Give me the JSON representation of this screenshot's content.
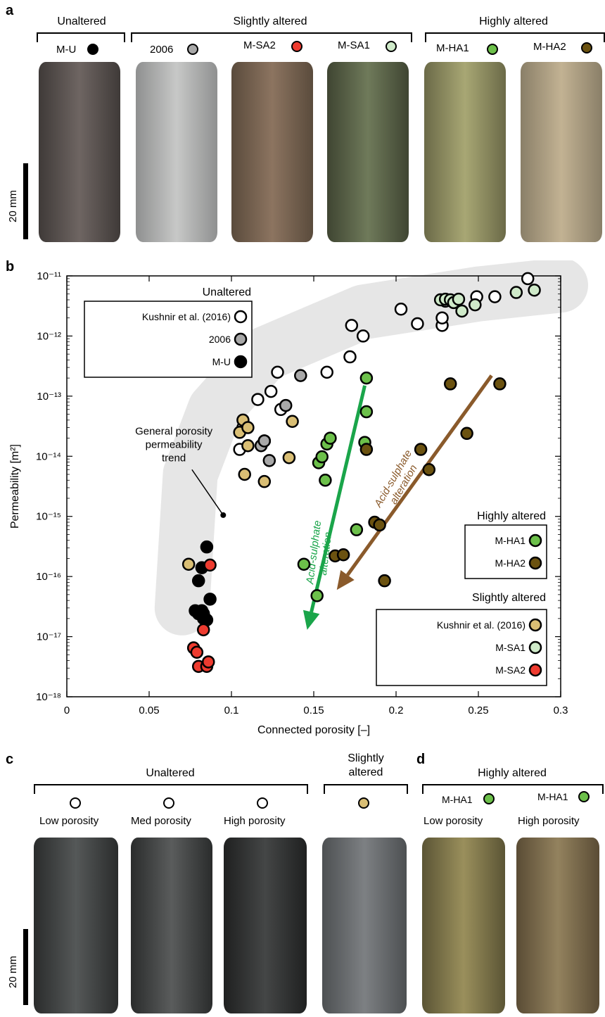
{
  "panel_a": {
    "letter": "a",
    "groups": [
      {
        "label": "Unaltered"
      },
      {
        "label": "Slightly altered"
      },
      {
        "label": "Highly altered"
      }
    ],
    "samples": [
      {
        "label": "M-U",
        "color": "#000000"
      },
      {
        "label": "2006",
        "color": "#a8a8a8"
      },
      {
        "label": "M-SA2",
        "color": "#ee3b2f"
      },
      {
        "label": "M-SA1",
        "color": "#cfeac9"
      },
      {
        "label": "M-HA1",
        "color": "#6cc04a"
      },
      {
        "label": "M-HA2",
        "color": "#6b5210"
      }
    ],
    "scale_label": "20 mm"
  },
  "panel_b": {
    "letter": "b",
    "legend_unaltered": {
      "title": "Unaltered",
      "items": [
        {
          "label": "Kushnir et al. (2016)",
          "color": "#ffffff"
        },
        {
          "label": "2006",
          "color": "#a8a8a8"
        },
        {
          "label": "M-U",
          "color": "#000000"
        }
      ]
    },
    "legend_highly": {
      "title": "Highly altered",
      "items": [
        {
          "label": "M-HA1",
          "color": "#6cc04a"
        },
        {
          "label": "M-HA2",
          "color": "#6b5210"
        }
      ]
    },
    "legend_slightly": {
      "title": "Slightly altered",
      "items": [
        {
          "label": "Kushnir et al. (2016)",
          "color": "#d9be74"
        },
        {
          "label": "M-SA1",
          "color": "#cfeac9"
        },
        {
          "label": "M-SA2",
          "color": "#ee3b2f"
        }
      ]
    },
    "trend_annotation": [
      "General porosity",
      "permeability",
      "trend"
    ],
    "arrow_green_label": [
      "Acid-sulphate",
      "alteration"
    ],
    "arrow_brown_label": [
      "Acid-sulphate",
      "alteration"
    ],
    "colors": {
      "green_arrow": "#1aa54a",
      "brown_arrow": "#8a5a2b",
      "band": "#e6e6e6"
    }
  },
  "chart_data": {
    "type": "scatter",
    "xlabel": "Connected porosity [–]",
    "ylabel": "Permeability [m²]",
    "xlim": [
      0,
      0.3
    ],
    "ylim": [
      1e-18,
      1e-11
    ],
    "yscale": "log",
    "x_ticks": [
      "0",
      "0.05",
      "0.1",
      "0.15",
      "0.2",
      "0.25",
      "0.3"
    ],
    "y_ticks": [
      "10⁻¹⁸",
      "10⁻¹⁷",
      "10⁻¹⁶",
      "10⁻¹⁵",
      "10⁻¹⁴",
      "10⁻¹³",
      "10⁻¹²",
      "10⁻¹¹"
    ],
    "series": [
      {
        "name": "Kushnir et al. (2016)",
        "group": "Unaltered",
        "color": "#ffffff",
        "points": [
          [
            0.105,
            1.3e-14
          ],
          [
            0.107,
            3e-14
          ],
          [
            0.116,
            8.8e-14
          ],
          [
            0.12,
            1.8e-14
          ],
          [
            0.124,
            1.2e-13
          ],
          [
            0.128,
            2.5e-13
          ],
          [
            0.13,
            6e-14
          ],
          [
            0.158,
            2.5e-13
          ],
          [
            0.172,
            4.5e-13
          ],
          [
            0.173,
            1.5e-12
          ],
          [
            0.18,
            1e-12
          ],
          [
            0.203,
            2.8e-12
          ],
          [
            0.213,
            1.6e-12
          ],
          [
            0.228,
            1.5e-12
          ],
          [
            0.228,
            2e-12
          ],
          [
            0.23,
            3.8e-12
          ],
          [
            0.249,
            4.5e-12
          ],
          [
            0.26,
            4.5e-12
          ],
          [
            0.28,
            9e-12
          ]
        ]
      },
      {
        "name": "2006",
        "group": "Unaltered",
        "color": "#a8a8a8",
        "points": [
          [
            0.118,
            1.5e-14
          ],
          [
            0.12,
            1.8e-14
          ],
          [
            0.123,
            8.5e-15
          ],
          [
            0.133,
            7e-14
          ],
          [
            0.142,
            2.2e-13
          ]
        ]
      },
      {
        "name": "M-U",
        "group": "Unaltered",
        "color": "#000000",
        "points": [
          [
            0.078,
            2.7e-17
          ],
          [
            0.08,
            2.4e-17
          ],
          [
            0.08,
            8.5e-17
          ],
          [
            0.082,
            1.4e-16
          ],
          [
            0.082,
            2.7e-17
          ],
          [
            0.083,
            2e-17
          ],
          [
            0.085,
            3.1e-16
          ],
          [
            0.085,
            1.9e-17
          ],
          [
            0.087,
            4.2e-17
          ],
          [
            0.083,
            2.4e-17
          ]
        ]
      },
      {
        "name": "Kushnir et al. (2016)",
        "group": "Slightly altered",
        "color": "#d9be74",
        "points": [
          [
            0.074,
            1.6e-16
          ],
          [
            0.105,
            2.5e-14
          ],
          [
            0.107,
            4e-14
          ],
          [
            0.108,
            5e-15
          ],
          [
            0.11,
            3e-14
          ],
          [
            0.11,
            1.5e-14
          ],
          [
            0.12,
            3.8e-15
          ],
          [
            0.135,
            9.5e-15
          ],
          [
            0.137,
            3.8e-14
          ]
        ]
      },
      {
        "name": "M-SA1",
        "group": "Slightly altered",
        "color": "#cfeac9",
        "points": [
          [
            0.227,
            4e-12
          ],
          [
            0.23,
            4.1e-12
          ],
          [
            0.233,
            4e-12
          ],
          [
            0.235,
            3.6e-12
          ],
          [
            0.238,
            4.1e-12
          ],
          [
            0.24,
            2.6e-12
          ],
          [
            0.248,
            3.3e-12
          ],
          [
            0.273,
            5.3e-12
          ],
          [
            0.284,
            5.8e-12
          ]
        ]
      },
      {
        "name": "M-SA2",
        "group": "Slightly altered",
        "color": "#ee3b2f",
        "points": [
          [
            0.077,
            6.5e-18
          ],
          [
            0.079,
            5.5e-18
          ],
          [
            0.08,
            3.2e-18
          ],
          [
            0.083,
            1.3e-17
          ],
          [
            0.085,
            3.2e-18
          ],
          [
            0.086,
            3.8e-18
          ],
          [
            0.087,
            1.55e-16
          ]
        ]
      },
      {
        "name": "M-HA1",
        "group": "Highly altered",
        "color": "#6cc04a",
        "points": [
          [
            0.144,
            1.6e-16
          ],
          [
            0.152,
            4.8e-17
          ],
          [
            0.153,
            7.8e-15
          ],
          [
            0.155,
            9.8e-15
          ],
          [
            0.157,
            4e-15
          ],
          [
            0.158,
            1.6e-14
          ],
          [
            0.16,
            2e-14
          ],
          [
            0.176,
            6e-16
          ],
          [
            0.181,
            1.7e-14
          ],
          [
            0.182,
            2e-13
          ],
          [
            0.182,
            5.5e-14
          ]
        ]
      },
      {
        "name": "M-HA2",
        "group": "Highly altered",
        "color": "#6b5210",
        "points": [
          [
            0.163,
            2.2e-16
          ],
          [
            0.168,
            2.3e-16
          ],
          [
            0.182,
            1.3e-14
          ],
          [
            0.187,
            8e-16
          ],
          [
            0.19,
            7.2e-16
          ],
          [
            0.193,
            8.5e-17
          ],
          [
            0.215,
            1.3e-14
          ],
          [
            0.22,
            6e-15
          ],
          [
            0.233,
            1.6e-13
          ],
          [
            0.243,
            2.4e-14
          ],
          [
            0.263,
            1.6e-13
          ]
        ]
      }
    ]
  },
  "panel_c": {
    "letter": "c",
    "groups": [
      {
        "label": "Unaltered"
      },
      {
        "label": "Slightly altered"
      }
    ],
    "samples": [
      {
        "label": "Low porosity",
        "color": "#ffffff"
      },
      {
        "label": "Med porosity",
        "color": "#ffffff"
      },
      {
        "label": "High porosity",
        "color": "#ffffff"
      },
      {
        "label": "",
        "color": "#d9be74"
      }
    ],
    "scale_label": "20 mm"
  },
  "panel_d": {
    "letter": "d",
    "group_label": "Highly altered",
    "samples": [
      {
        "label": "M-HA1",
        "sub": "Low porosity",
        "color": "#6cc04a"
      },
      {
        "label": "M-HA1",
        "sub": "High porosity",
        "color": "#6cc04a"
      }
    ]
  }
}
